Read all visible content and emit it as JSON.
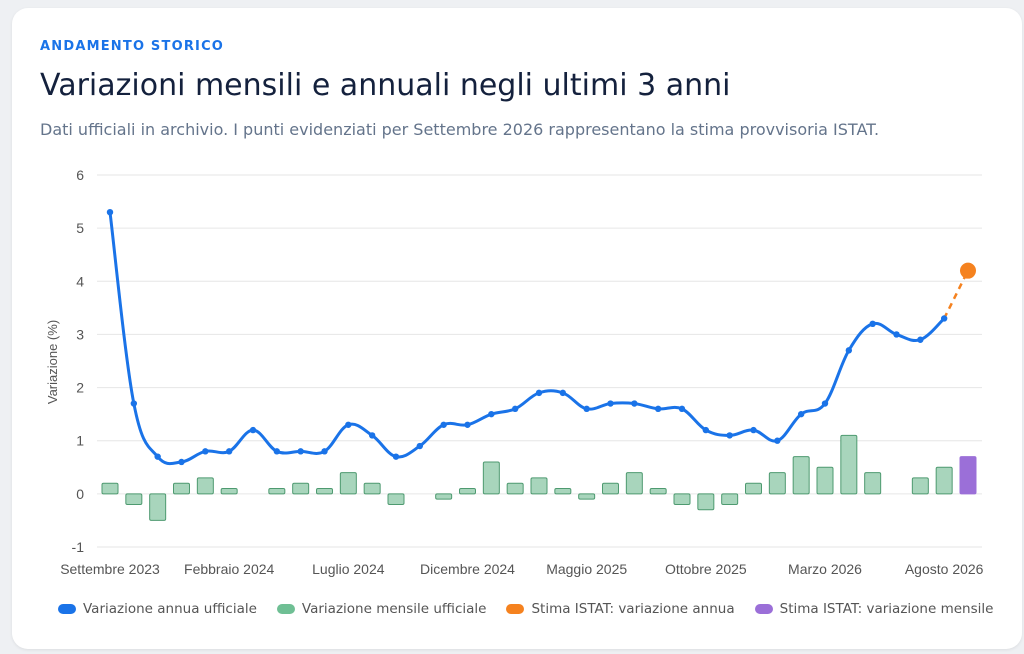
{
  "header": {
    "eyebrow": "ANDAMENTO STORICO",
    "title": "Variazioni mensili e annuali negli ultimi 3 anni",
    "subtitle": "Dati ufficiali in archivio. I punti evidenziati per Settembre 2026 rappresentano la stima provvisoria ISTAT."
  },
  "colors": {
    "annual": "#1a73e8",
    "monthly_fill": "#a8d5bc",
    "monthly_stroke": "#4e9a70",
    "estimate_annual": "#f5821f",
    "estimate_monthly": "#9b6fd8",
    "grid": "#e6e6e6"
  },
  "chart_data": {
    "type": "line",
    "ylabel": "Variazione (%)",
    "ylim": [
      -1,
      6
    ],
    "yticks": [
      -1,
      0,
      1,
      2,
      3,
      4,
      5,
      6
    ],
    "grid": true,
    "legend_position": "bottom",
    "x": [
      "Settembre 2023",
      "Ottobre 2023",
      "Novembre 2023",
      "Dicembre 2023",
      "Gennaio 2024",
      "Febbraio 2024",
      "Marzo 2024",
      "Aprile 2024",
      "Maggio 2024",
      "Giugno 2024",
      "Luglio 2024",
      "Agosto 2024",
      "Settembre 2024",
      "Ottobre 2024",
      "Novembre 2024",
      "Dicembre 2024",
      "Gennaio 2025",
      "Febbraio 2025",
      "Marzo 2025",
      "Aprile 2025",
      "Maggio 2025",
      "Giugno 2025",
      "Luglio 2025",
      "Agosto 2025",
      "Settembre 2025",
      "Ottobre 2025",
      "Novembre 2025",
      "Dicembre 2025",
      "Gennaio 2026",
      "Febbraio 2026",
      "Marzo 2026",
      "Aprile 2026",
      "Maggio 2026",
      "Giugno 2026",
      "Luglio 2026",
      "Agosto 2026",
      "Settembre 2026"
    ],
    "xtick_labels": [
      {
        "index": 0,
        "label": "Settembre 2023"
      },
      {
        "index": 5,
        "label": "Febbraio 2024"
      },
      {
        "index": 10,
        "label": "Luglio 2024"
      },
      {
        "index": 15,
        "label": "Dicembre 2024"
      },
      {
        "index": 20,
        "label": "Maggio 2025"
      },
      {
        "index": 25,
        "label": "Ottobre 2025"
      },
      {
        "index": 30,
        "label": "Marzo 2026"
      },
      {
        "index": 35,
        "label": "Agosto 2026"
      }
    ],
    "series": [
      {
        "name": "Variazione annua ufficiale",
        "type": "line",
        "values": [
          5.3,
          1.7,
          0.7,
          0.6,
          0.8,
          0.8,
          1.2,
          0.8,
          0.8,
          0.8,
          1.3,
          1.1,
          0.7,
          0.9,
          1.3,
          1.3,
          1.5,
          1.6,
          1.9,
          1.9,
          1.6,
          1.7,
          1.7,
          1.6,
          1.6,
          1.2,
          1.1,
          1.2,
          1.0,
          1.5,
          1.7,
          2.7,
          3.2,
          3.0,
          2.9,
          3.3,
          null
        ]
      },
      {
        "name": "Variazione mensile ufficiale",
        "type": "bar",
        "values": [
          0.2,
          -0.2,
          -0.5,
          0.2,
          0.3,
          0.1,
          0.0,
          0.1,
          0.2,
          0.1,
          0.4,
          0.2,
          -0.2,
          0.0,
          -0.1,
          0.1,
          0.6,
          0.2,
          0.3,
          0.1,
          -0.1,
          0.2,
          0.4,
          0.1,
          -0.2,
          -0.3,
          -0.2,
          0.2,
          0.4,
          0.7,
          0.5,
          1.1,
          0.4,
          0.0,
          0.3,
          0.5,
          null
        ]
      },
      {
        "name": "Stima ISTAT: variazione annua",
        "type": "point",
        "values": [
          null,
          null,
          null,
          null,
          null,
          null,
          null,
          null,
          null,
          null,
          null,
          null,
          null,
          null,
          null,
          null,
          null,
          null,
          null,
          null,
          null,
          null,
          null,
          null,
          null,
          null,
          null,
          null,
          null,
          null,
          null,
          null,
          null,
          null,
          null,
          null,
          4.2
        ]
      },
      {
        "name": "Stima ISTAT: variazione mensile",
        "type": "bar",
        "values": [
          null,
          null,
          null,
          null,
          null,
          null,
          null,
          null,
          null,
          null,
          null,
          null,
          null,
          null,
          null,
          null,
          null,
          null,
          null,
          null,
          null,
          null,
          null,
          null,
          null,
          null,
          null,
          null,
          null,
          null,
          null,
          null,
          null,
          null,
          null,
          null,
          0.7
        ]
      }
    ]
  }
}
